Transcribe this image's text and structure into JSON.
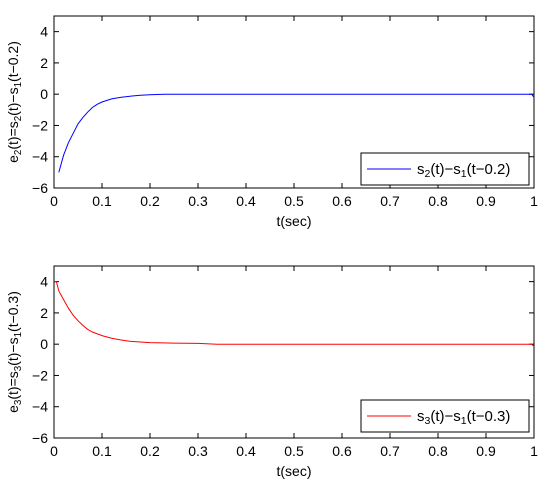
{
  "chart_data": [
    {
      "type": "line",
      "xlabel": "t(sec)",
      "ylabel": {
        "base": "e",
        "sub": "2",
        "rest": "(t)=s",
        "sub2": "2",
        "rest2": "(t)−s",
        "sub3": "1",
        "rest3": "(t−0.2)"
      },
      "xlim": [
        0,
        1
      ],
      "ylim": [
        -6,
        5
      ],
      "xticks": [
        "0",
        "0.1",
        "0.2",
        "0.3",
        "0.4",
        "0.5",
        "0.6",
        "0.7",
        "0.8",
        "0.9",
        "1"
      ],
      "yticks": [
        "−6",
        "−4",
        "−2",
        "0",
        "2",
        "4"
      ],
      "legend_position": "bottom-right",
      "grid": false,
      "series": [
        {
          "name": {
            "a": "s",
            "sa": "2",
            "b": "(t)−s",
            "sb": "1",
            "c": "(t−0.2)"
          },
          "color": "#0000ff",
          "x": [
            0.01,
            0.02,
            0.03,
            0.04,
            0.05,
            0.06,
            0.07,
            0.08,
            0.09,
            0.1,
            0.12,
            0.14,
            0.16,
            0.18,
            0.2,
            0.23,
            0.3,
            0.5,
            0.8,
            0.995,
            1.0
          ],
          "y": [
            -5.0,
            -3.9,
            -3.1,
            -2.5,
            -1.9,
            -1.5,
            -1.15,
            -0.85,
            -0.65,
            -0.5,
            -0.3,
            -0.2,
            -0.12,
            -0.07,
            -0.04,
            0.0,
            0.0,
            0.0,
            0.0,
            0.0,
            -0.2
          ]
        }
      ]
    },
    {
      "type": "line",
      "xlabel": "t(sec)",
      "ylabel": {
        "base": "e",
        "sub": "3",
        "rest": "(t)=s",
        "sub2": "3",
        "rest2": "(t)−s",
        "sub3": "1",
        "rest3": "(t−0.3)"
      },
      "xlim": [
        0,
        1
      ],
      "ylim": [
        -6,
        5
      ],
      "xticks": [
        "0",
        "0.1",
        "0.2",
        "0.3",
        "0.4",
        "0.5",
        "0.6",
        "0.7",
        "0.8",
        "0.9",
        "1"
      ],
      "yticks": [
        "−6",
        "−4",
        "−2",
        "0",
        "2",
        "4"
      ],
      "legend_position": "bottom-right",
      "grid": false,
      "series": [
        {
          "name": {
            "a": "s",
            "sa": "3",
            "b": "(t)−s",
            "sb": "1",
            "c": "(t−0.3)"
          },
          "color": "#ff0000",
          "x": [
            0.0,
            0.005,
            0.01,
            0.02,
            0.03,
            0.04,
            0.05,
            0.06,
            0.07,
            0.08,
            0.1,
            0.12,
            0.14,
            0.16,
            0.2,
            0.25,
            0.3,
            0.34,
            0.5,
            0.8,
            0.995,
            1.0
          ],
          "y": [
            4.0,
            4.0,
            3.4,
            2.85,
            2.3,
            1.85,
            1.5,
            1.2,
            0.95,
            0.78,
            0.55,
            0.38,
            0.27,
            0.18,
            0.1,
            0.07,
            0.05,
            0.0,
            0.0,
            0.0,
            0.0,
            -0.15
          ]
        }
      ]
    }
  ]
}
